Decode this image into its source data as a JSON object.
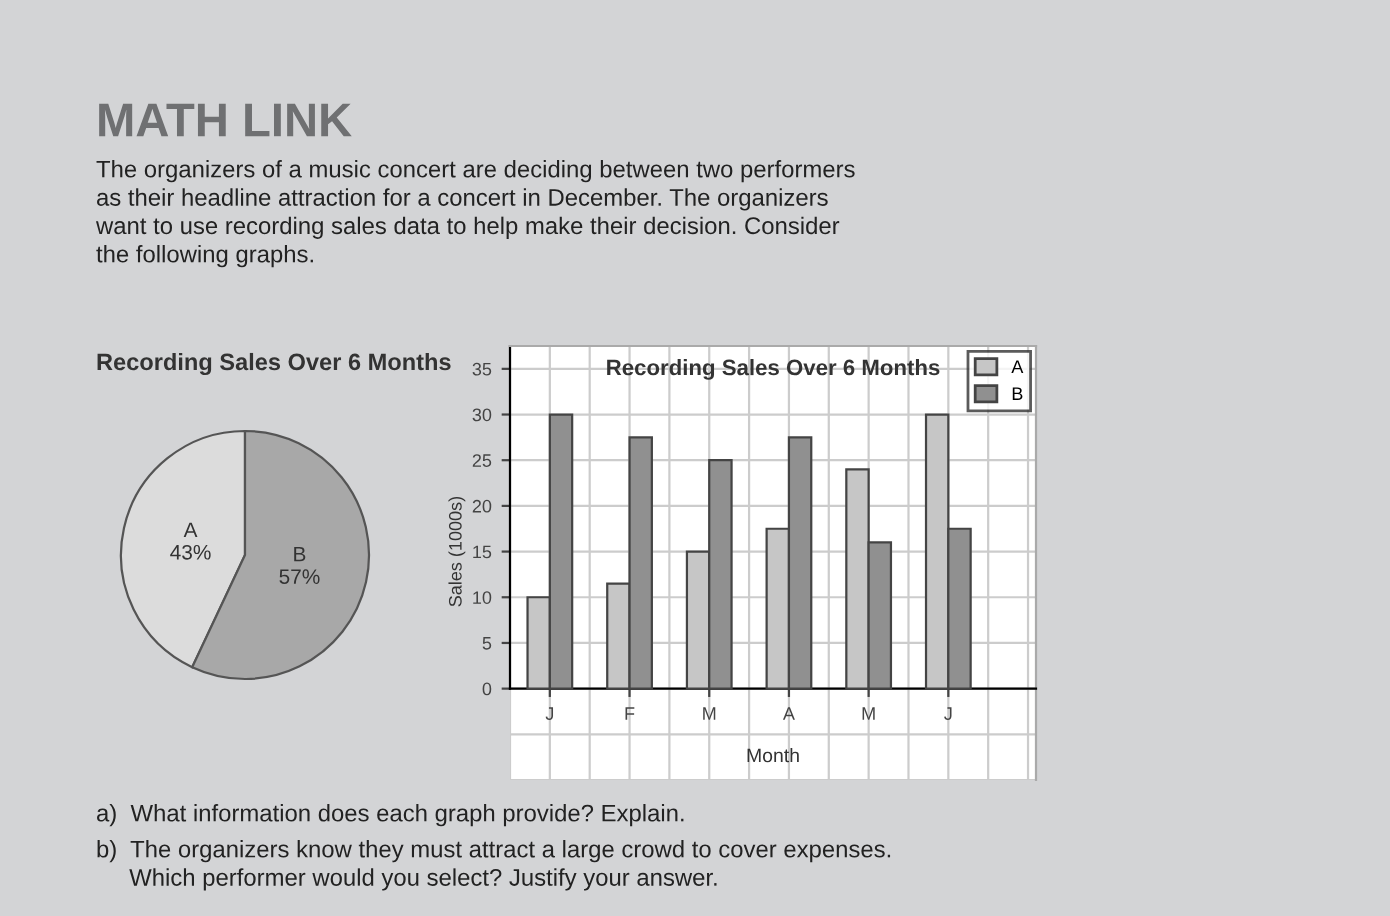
{
  "chart_data": [
    {
      "type": "other",
      "title": "MATH LINK",
      "annotations": [
        "The organizers of a music concert are deciding between two performers\nas their headline attraction for a concert in December. The organizers\nwant to use recording sales data to help make their decision. Consider\nthe following graphs.",
        "a)  What information does each graph provide? Explain.",
        "b)  The organizers know they must attract a large crowd to cover expenses.\n     Which performer would you select? Justify your answer."
      ]
    },
    {
      "type": "pie",
      "title": "Recording Sales Over 6 Months",
      "categories": [
        "A",
        "B"
      ],
      "values": [
        43,
        57
      ],
      "value_labels": [
        "43%",
        "57%"
      ],
      "colors": [
        "#dcdcdc",
        "#a8a8a8"
      ]
    },
    {
      "type": "bar",
      "title": "Recording Sales Over 6 Months",
      "xlabel": "Month",
      "ylabel": "Sales (1000s)",
      "categories": [
        "J",
        "F",
        "M",
        "A",
        "M",
        "J"
      ],
      "series": [
        {
          "name": "A",
          "color": "#c6c6c6",
          "values": [
            10,
            11.5,
            15,
            17.5,
            24,
            30
          ]
        },
        {
          "name": "B",
          "color": "#909090",
          "values": [
            30,
            27.5,
            25,
            27.5,
            16,
            17.5
          ]
        }
      ],
      "ylim": [
        -10,
        37.5
      ],
      "yticks": [
        0,
        5,
        10,
        15,
        20,
        25,
        30,
        35
      ],
      "grid": true,
      "legend": "top right"
    }
  ]
}
